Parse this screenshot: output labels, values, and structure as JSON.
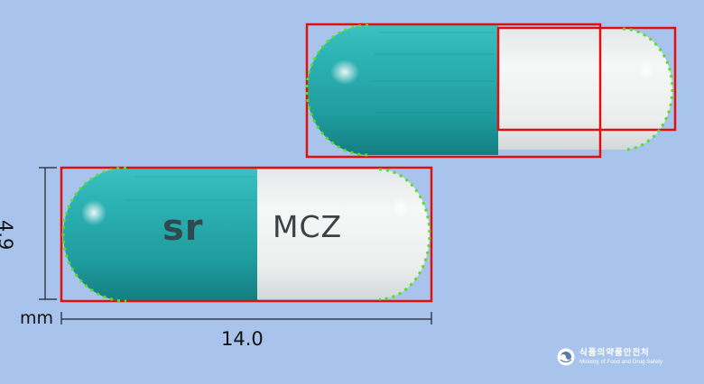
{
  "capsule_bottom": {
    "imprint_left": "sr",
    "imprint_right": "MCZ"
  },
  "dimensions": {
    "height_value": "4.9",
    "unit": "mm",
    "width_value": "14.0"
  },
  "logo": {
    "korean_name": "식품의약품안전처",
    "english_name": "Ministry of Food and Drug Safety",
    "icon": "mfds-emblem-icon"
  },
  "colors": {
    "background": "#a8c4ec",
    "capsule_teal": "#2aaeb0",
    "capsule_white": "#f0f2f2",
    "box_red": "#e01010",
    "contour_green": "#55e020"
  }
}
